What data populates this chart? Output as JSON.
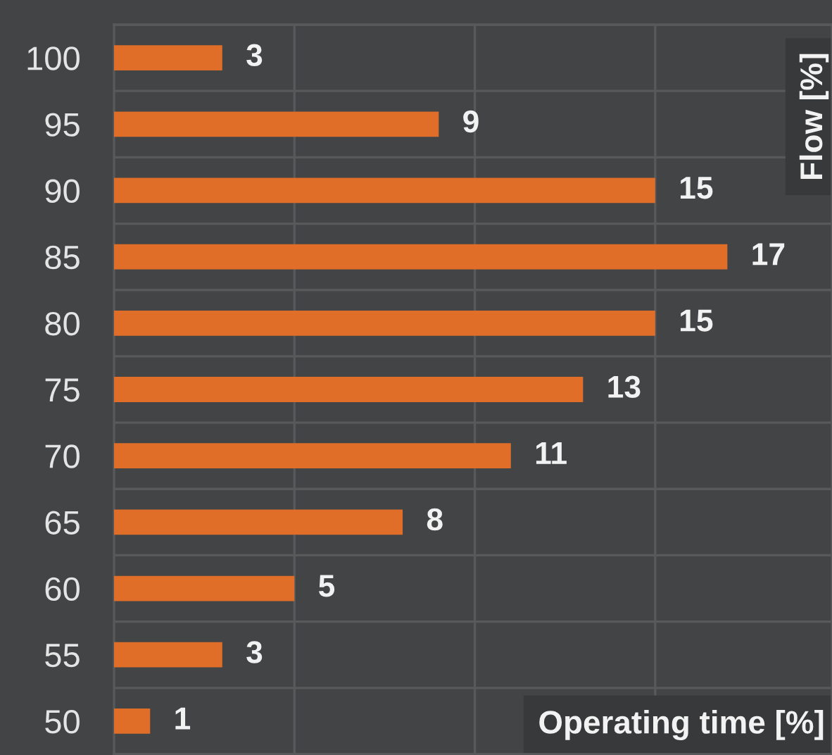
{
  "chart_data": {
    "type": "bar",
    "orientation": "horizontal",
    "categories": [
      "100",
      "95",
      "90",
      "85",
      "80",
      "75",
      "70",
      "65",
      "60",
      "55",
      "50"
    ],
    "values": [
      3,
      9,
      15,
      17,
      15,
      13,
      11,
      8,
      5,
      3,
      1
    ],
    "color": "#e06e28",
    "xlabel": "Operating time [%]",
    "ylabel": "Flow [%]",
    "xlim": [
      0,
      19.9
    ],
    "xticks": [
      {
        "value": 5,
        "label": null
      },
      {
        "value": 10,
        "label": null
      },
      {
        "value": 15,
        "label": null
      }
    ],
    "tick_labels": "y",
    "grid": true,
    "data_labels": true
  }
}
